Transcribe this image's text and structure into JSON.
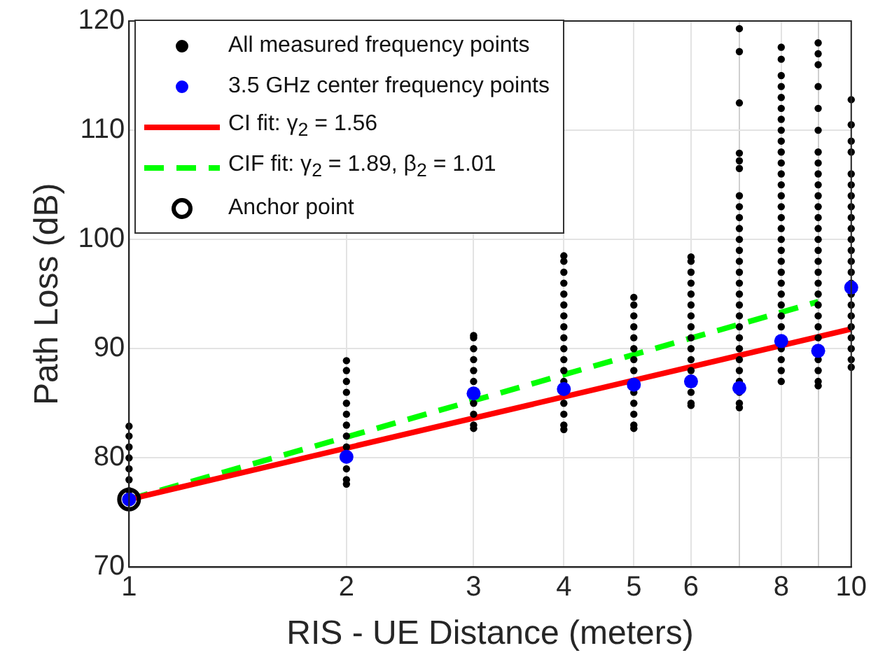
{
  "chart_data": {
    "type": "scatter",
    "xlabel": "RIS - UE Distance (meters)",
    "ylabel": "Path Loss (dB)",
    "log": "x",
    "grid": true,
    "legend": "top left",
    "xlim": [
      1,
      10
    ],
    "xticks": [
      1,
      2,
      3,
      4,
      5,
      6,
      {
        "value": 7,
        "label": null
      },
      8,
      {
        "value": 9,
        "label": null
      },
      10
    ],
    "ylim": [
      70,
      120
    ],
    "yticks": [
      70,
      80,
      90,
      100,
      110,
      120
    ],
    "series": [
      {
        "name": "All measured frequency points",
        "marker": "circle",
        "color": "#000000",
        "x": [
          1,
          1,
          1,
          1,
          1,
          1,
          1,
          2,
          2,
          2,
          2,
          2,
          2,
          2,
          2,
          2,
          2,
          2,
          2,
          3,
          3,
          3,
          3,
          3,
          3,
          3,
          3,
          3,
          3,
          4,
          4,
          4,
          4,
          4,
          4,
          4,
          4,
          4,
          4,
          4,
          4,
          4,
          4,
          4,
          4,
          4,
          5,
          5,
          5,
          5,
          5,
          5,
          5,
          5,
          5,
          5,
          5,
          5,
          5,
          6,
          6,
          6,
          6,
          6,
          6,
          6,
          6,
          6,
          6,
          6,
          6,
          6,
          6,
          6,
          7,
          7,
          7,
          7,
          7,
          7,
          7,
          7,
          7,
          7,
          7,
          7,
          7,
          7,
          7,
          7,
          7,
          7,
          7,
          7,
          7,
          7,
          7,
          7,
          7,
          7,
          7,
          8,
          8,
          8,
          8,
          8,
          8,
          8,
          8,
          8,
          8,
          8,
          8,
          8,
          8,
          8,
          8,
          8,
          8,
          8,
          8,
          8,
          8,
          8,
          8,
          8,
          8,
          8,
          8,
          8,
          8,
          9,
          9,
          9,
          9,
          9,
          9,
          9,
          9,
          9,
          9,
          9,
          9,
          9,
          9,
          9,
          9,
          9,
          9,
          9,
          9,
          9,
          9,
          9,
          9,
          9,
          9,
          9,
          9,
          10,
          10,
          10,
          10,
          10,
          10,
          10,
          10,
          10,
          10,
          10,
          10,
          10,
          10,
          10,
          10,
          10,
          10,
          10,
          10,
          10,
          10,
          10
        ],
        "values": [
          77,
          78,
          79,
          80,
          81,
          82,
          82.9,
          77.6,
          78,
          79,
          81,
          82,
          83,
          84,
          85,
          86,
          87,
          88,
          88.9,
          82.7,
          83,
          84,
          85,
          87,
          88,
          89,
          90,
          91,
          91.2,
          82.6,
          83,
          84,
          85,
          87,
          88,
          89,
          90,
          91,
          92,
          93,
          94,
          95,
          96,
          97,
          98,
          98.5,
          82.7,
          83,
          84,
          85,
          86,
          88,
          89,
          90,
          91,
          92,
          93,
          94,
          94.7,
          84.8,
          85,
          86,
          88,
          89,
          90,
          91,
          92,
          93,
          94,
          95,
          96,
          97,
          98,
          98.4,
          84.6,
          85,
          86,
          87,
          88,
          89,
          90,
          91,
          92,
          93,
          94,
          95,
          96,
          97,
          98,
          99,
          100,
          101,
          102,
          103,
          104,
          106.5,
          107.2,
          107.9,
          112.5,
          117.2,
          119.3,
          87,
          88,
          89,
          90,
          92,
          93,
          94,
          95,
          96,
          97,
          98,
          99,
          100,
          101,
          102,
          103,
          104,
          105,
          106,
          107,
          108,
          109,
          110,
          111,
          112,
          113,
          114,
          115,
          116.5,
          117.6,
          86.6,
          87,
          88,
          89,
          91,
          92,
          93,
          94,
          95,
          96,
          97,
          98,
          99,
          100,
          101,
          102,
          103,
          104,
          105,
          106,
          107,
          108,
          110,
          112,
          114,
          116,
          117,
          118,
          88.3,
          89,
          90,
          91,
          92,
          93,
          94,
          95,
          96,
          97,
          98,
          99,
          100,
          101,
          102,
          103,
          104,
          105,
          106,
          108,
          109,
          110.5,
          112.8
        ]
      },
      {
        "name": "3.5 GHz center frequency points",
        "marker": "circle",
        "color": "#0000ff",
        "x": [
          1,
          2,
          3,
          4,
          5,
          6,
          7,
          8,
          9,
          10
        ],
        "values": [
          76.2,
          80.1,
          85.9,
          86.3,
          86.7,
          87,
          86.4,
          90.7,
          89.8,
          95.6
        ]
      },
      {
        "name": "CI fit: γ$_{2}$ = 1.56",
        "type": "line",
        "marker": "none",
        "line_style": "solid",
        "color": "#ff0000",
        "x": [
          1,
          10
        ],
        "values": [
          76.2,
          91.8
        ]
      },
      {
        "name": "CIF fit: γ$_{2}$ = 1.89, β$_{2}$ = 1.01",
        "type": "line",
        "marker": "none",
        "line_style": "dashed",
        "color": "#00ff00",
        "x": [
          1,
          9
        ],
        "values": [
          76.2,
          94.3
        ]
      },
      {
        "name": "Anchor point",
        "marker": "circle",
        "color": "#000000",
        "x": [
          1
        ],
        "values": [
          76.2
        ]
      }
    ]
  }
}
